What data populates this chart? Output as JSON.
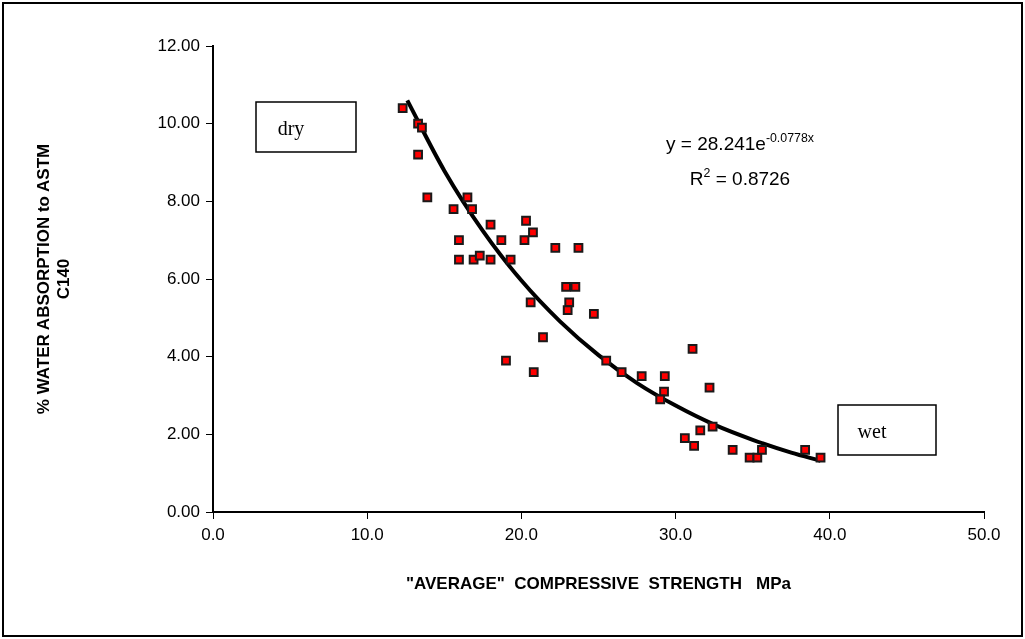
{
  "chart_data": {
    "type": "scatter",
    "xlabel": "\"AVERAGE\"  COMPRESSIVE  STRENGTH   MPa",
    "ylabel": "% WATER ABSORPTION to ASTM C140",
    "xlim": [
      0,
      50
    ],
    "xticks": [
      {
        "value": 0,
        "label": "0.0"
      },
      {
        "value": 10,
        "label": "10.0"
      },
      {
        "value": 20,
        "label": "20.0"
      },
      {
        "value": 30,
        "label": "30.0"
      },
      {
        "value": 40,
        "label": "40.0"
      },
      {
        "value": 50,
        "label": "50.0"
      }
    ],
    "ylim": [
      0,
      12
    ],
    "yticks": [
      {
        "value": 0,
        "label": "0.00"
      },
      {
        "value": 2,
        "label": "2.00"
      },
      {
        "value": 4,
        "label": "4.00"
      },
      {
        "value": 6,
        "label": "6.00"
      },
      {
        "value": 8,
        "label": "8.00"
      },
      {
        "value": 10,
        "label": "10.00"
      },
      {
        "value": 12,
        "label": "12.00"
      }
    ],
    "grid": false,
    "legend": false,
    "marker": "square",
    "series": [
      {
        "color": "#ff0000",
        "x": [
          12.3,
          13.3,
          13.55,
          13.3,
          13.9,
          16.5,
          16.8,
          15.6,
          15.95,
          15.95,
          16.9,
          18.0,
          20.3,
          20.75,
          18.7,
          20.2,
          22.2,
          23.7,
          17.3,
          18.0,
          19.3,
          22.9,
          23.5,
          20.6,
          23.1,
          23.0,
          24.7,
          21.4,
          19.0,
          20.8,
          25.5,
          31.1,
          26.5,
          27.8,
          29.3,
          29.25,
          29.0,
          32.2,
          32.4,
          31.6,
          30.6,
          31.2,
          33.7,
          34.8,
          35.3,
          35.6,
          38.4,
          39.4
        ],
        "values": [
          10.4,
          10.0,
          9.9,
          9.2,
          8.1,
          8.1,
          7.8,
          7.8,
          7.0,
          6.5,
          6.5,
          7.4,
          7.5,
          7.2,
          7.0,
          7.0,
          6.8,
          6.8,
          6.6,
          6.5,
          6.5,
          5.8,
          5.8,
          5.4,
          5.4,
          5.2,
          5.1,
          4.5,
          3.9,
          3.6,
          3.9,
          4.2,
          3.6,
          3.5,
          3.5,
          3.1,
          2.9,
          3.2,
          2.2,
          2.1,
          1.9,
          1.7,
          1.6,
          1.4,
          1.4,
          1.6,
          1.6,
          1.4
        ]
      },
      {
        "type": "line",
        "color": "#000000",
        "marker": "none",
        "line_style": "solid",
        "x": [
          12.6,
          15,
          17.5,
          20,
          22.5,
          25,
          27.5,
          30,
          32.5,
          35,
          37.5,
          39.4
        ],
        "values": [
          10.6,
          8.79,
          7.24,
          5.96,
          4.91,
          4.04,
          3.32,
          2.74,
          2.25,
          1.86,
          1.53,
          1.32
        ]
      }
    ],
    "annotations": [
      "dry",
      "wet",
      "y = 28.241e$^{-0.0778x}$",
      "R$^{2}$ = 0.8726"
    ]
  }
}
